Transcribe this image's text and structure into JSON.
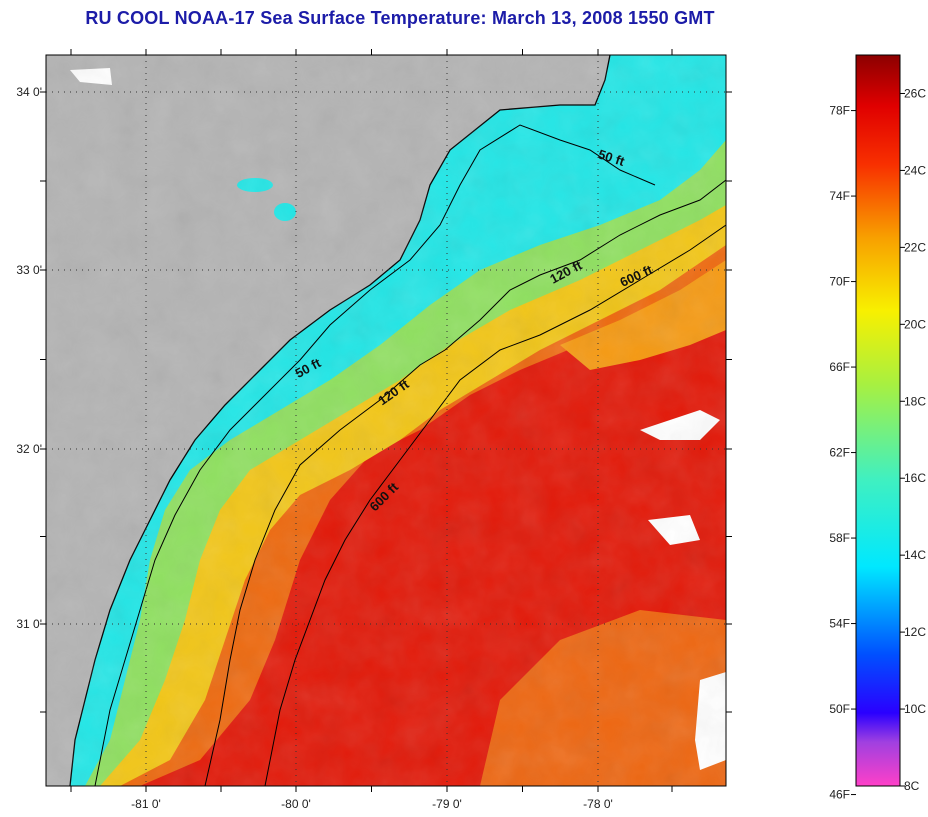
{
  "title": "RU COOL  NOAA-17  Sea Surface Temperature:  March 13, 2008 1550 GMT",
  "map": {
    "lat_ticks": [
      "34 0'",
      "33 0'",
      "32 0'",
      "31 0'"
    ],
    "lon_ticks": [
      "-81 0'",
      "-80 0'",
      "-79 0'",
      "-78 0'"
    ],
    "contour_labels": [
      {
        "text": "50 ft",
        "rotation": 18
      },
      {
        "text": "120 ft",
        "rotation": -28
      },
      {
        "text": "600 ft",
        "rotation": -25
      },
      {
        "text": "50 ft",
        "rotation": -28
      },
      {
        "text": "120 ft",
        "rotation": -35
      },
      {
        "text": "600 ft",
        "rotation": -45
      }
    ],
    "colors": {
      "land": "#b4b4b4",
      "coast": "#000000",
      "cloud": "#ffffff"
    }
  },
  "colorbar": {
    "fahrenheit_labels": [
      "78F",
      "74F",
      "70F",
      "66F",
      "62F",
      "58F",
      "54F",
      "50F",
      "46F"
    ],
    "celsius_labels": [
      "26C",
      "24C",
      "22C",
      "20C",
      "18C",
      "16C",
      "14C",
      "12C",
      "10C",
      "8C"
    ],
    "range_celsius": [
      8,
      27
    ]
  }
}
